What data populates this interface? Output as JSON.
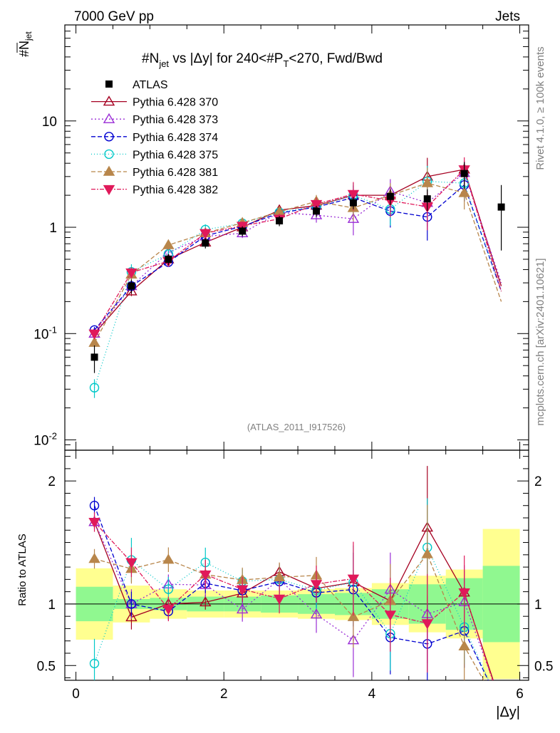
{
  "header": {
    "left": "7000 GeV pp",
    "right": "Jets"
  },
  "side": {
    "rivet": "Rivet 4.1.0, ≥ 100k events",
    "mcplots": "mcplots.cern.ch [arXiv:2401.10621]"
  },
  "chart_data": {
    "type": "scatter",
    "title": "#N̄jet vs |Δy| for 240<#P̄T<270, Fwd/Bwd",
    "title_parts": {
      "a": "#",
      "b": "N",
      "c": "jet",
      "d": " vs |Δy| for 240<#",
      "e": "P",
      "f": "T",
      "g": "<270, Fwd/Bwd"
    },
    "ylabel": {
      "main": "#N",
      "sub": "jet"
    },
    "ratio_ylabel": "Ratio to ATLAS",
    "xlabel": "|Δy|",
    "watermark": "(ATLAS_2011_I917526)",
    "xlim": [
      -0.15,
      6.12
    ],
    "ylim_log": [
      0.008,
      80
    ],
    "ratio_ylim": [
      0.38,
      2.25
    ],
    "x_ticks": [
      "0",
      "2",
      "4",
      "6"
    ],
    "y_ticks": [
      "10",
      "1"
    ],
    "y_tick_sci": {
      "base": "10",
      "exps": [
        "-1",
        "-2"
      ]
    },
    "ratio_ticks": [
      "2",
      "1",
      "0.5"
    ],
    "bin_edges": [
      0,
      0.5,
      1,
      1.5,
      2,
      2.5,
      3,
      3.5,
      4,
      4.5,
      5,
      5.5,
      6
    ],
    "x": [
      0.25,
      0.75,
      1.25,
      1.75,
      2.25,
      2.75,
      3.25,
      3.75,
      4.25,
      4.75,
      5.25,
      5.75
    ],
    "data": {
      "name": "ATLAS",
      "values": [
        0.06,
        0.28,
        0.5,
        0.71,
        0.92,
        1.15,
        1.42,
        1.7,
        1.95,
        1.85,
        3.2,
        1.55
      ],
      "band_stat": [
        0.14,
        0.04,
        0.05,
        0.06,
        0.06,
        0.07,
        0.08,
        0.09,
        0.12,
        0.16,
        0.21,
        0.31
      ],
      "band_total": [
        0.29,
        0.15,
        0.12,
        0.11,
        0.11,
        0.11,
        0.12,
        0.13,
        0.17,
        0.23,
        0.28,
        0.61
      ]
    },
    "series": [
      {
        "name": "Pythia 6.428 370",
        "color": "#a50021",
        "marker": "tri-up-open",
        "dash": "",
        "values": [
          0.1,
          0.25,
          0.5,
          0.72,
          1.0,
          1.45,
          1.6,
          2.0,
          2.0,
          3.0,
          3.5,
          0.28
        ],
        "ratio_err": [
          0.05,
          0.1,
          0.05,
          0.06,
          0.08,
          0.07,
          0.09,
          0.1,
          0.1,
          0.5,
          0.18,
          0.3
        ]
      },
      {
        "name": "Pythia 6.428 373",
        "color": "#9a2cd6",
        "marker": "tri-up-open",
        "dash": "2,3",
        "values": [
          0.1,
          0.28,
          0.58,
          0.82,
          0.88,
          1.38,
          1.3,
          1.2,
          2.18,
          1.7,
          3.25,
          0.3
        ],
        "ratio_err": [
          0.06,
          0.12,
          0.08,
          0.1,
          0.1,
          0.12,
          0.15,
          0.3,
          0.3,
          0.4,
          0.3,
          0.3
        ]
      },
      {
        "name": "Pythia 6.428 374",
        "color": "#0000d0",
        "marker": "circle-open",
        "dash": "6,3",
        "values": [
          0.108,
          0.28,
          0.47,
          0.83,
          1.02,
          1.36,
          1.55,
          1.9,
          1.42,
          1.25,
          2.5,
          0.25
        ],
        "ratio_err": [
          0.07,
          0.1,
          0.07,
          0.08,
          0.09,
          0.1,
          0.12,
          0.3,
          0.3,
          0.4,
          0.3,
          0.3
        ]
      },
      {
        "name": "Pythia 6.428 375",
        "color": "#00c8c8",
        "marker": "circle-open",
        "dash": "1,3",
        "values": [
          0.031,
          0.38,
          0.56,
          0.95,
          1.09,
          1.38,
          1.58,
          2.0,
          1.48,
          2.7,
          2.6,
          0.25
        ],
        "ratio_err": [
          0.2,
          0.18,
          0.1,
          0.12,
          0.1,
          0.12,
          0.15,
          0.3,
          0.3,
          0.4,
          0.3,
          0.3
        ]
      },
      {
        "name": "Pythia 6.428 381",
        "color": "#b8864b",
        "marker": "tri-up-filled",
        "dash": "6,3",
        "values": [
          0.082,
          0.36,
          0.68,
          0.88,
          1.1,
          1.4,
          1.75,
          1.52,
          2.0,
          2.6,
          2.1,
          0.2
        ],
        "ratio_err": [
          0.08,
          0.12,
          0.1,
          0.12,
          0.1,
          0.12,
          0.15,
          0.25,
          0.3,
          0.4,
          0.3,
          0.3
        ]
      },
      {
        "name": "Pythia 6.428 382",
        "color": "#e0195a",
        "marker": "tri-down-filled",
        "dash": "6,2,2,2",
        "values": [
          0.1,
          0.375,
          0.48,
          0.88,
          1.03,
          1.2,
          1.65,
          2.05,
          1.78,
          1.56,
          3.5,
          0.25
        ],
        "ratio_err": [
          0.08,
          0.12,
          0.1,
          0.12,
          0.1,
          0.12,
          0.15,
          0.3,
          0.3,
          0.4,
          0.3,
          0.3
        ]
      }
    ]
  }
}
